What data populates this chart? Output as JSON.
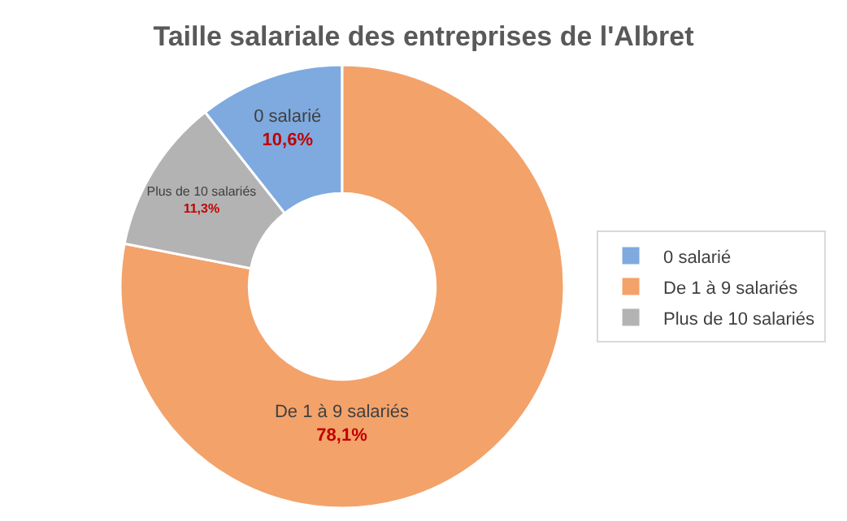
{
  "chart_data": {
    "type": "donut",
    "title": "Taille salariale des entreprises de l'Albret",
    "categories": [
      "0 salarié",
      "De 1 à 9 salariés",
      "Plus de 10 salariés"
    ],
    "values": [
      10.6,
      78.1,
      11.3
    ],
    "value_labels": [
      "10,6%",
      "78,1%",
      "11,3%"
    ],
    "colors": [
      "#7eaadf",
      "#f3a26a",
      "#b3b3b3"
    ],
    "legend": "right"
  }
}
